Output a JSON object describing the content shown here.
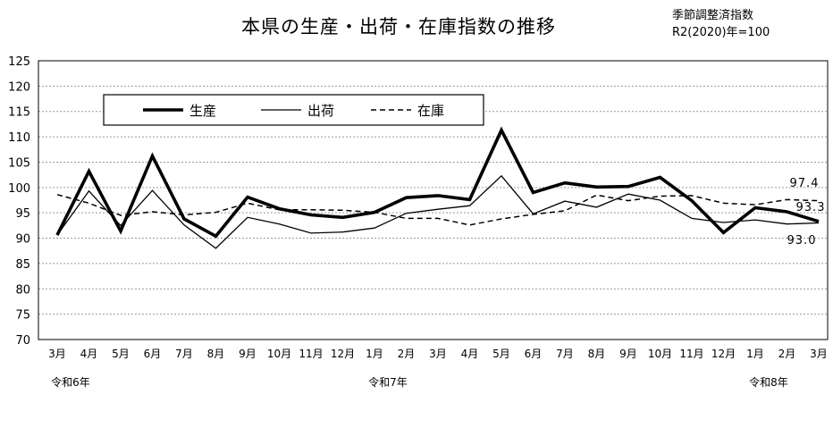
{
  "chart_data": {
    "type": "line",
    "title": "本県の生産・出荷・在庫指数の推移",
    "notes": [
      "季節調整済指数",
      "R2(2020)年=100"
    ],
    "categories": [
      "3月",
      "4月",
      "5月",
      "6月",
      "7月",
      "8月",
      "9月",
      "10月",
      "11月",
      "12月",
      "1月",
      "2月",
      "3月",
      "4月",
      "5月",
      "6月",
      "7月",
      "8月",
      "9月",
      "10月",
      "11月",
      "12月",
      "1月",
      "2月",
      "3月"
    ],
    "year_labels": [
      {
        "label": "令和6年",
        "category_index": 0
      },
      {
        "label": "令和7年",
        "category_index": 10
      },
      {
        "label": "令和8年",
        "category_index": 22
      }
    ],
    "ylim": [
      70,
      125
    ],
    "yticks": [
      70,
      75,
      80,
      85,
      90,
      95,
      100,
      105,
      110,
      115,
      120,
      125
    ],
    "grid": true,
    "legend_position": "top-left",
    "series": [
      {
        "name": "生産",
        "style": "thick",
        "color": "#000000",
        "values": [
          90.6,
          103.2,
          91.4,
          106.2,
          93.8,
          90.4,
          98.1,
          95.8,
          94.6,
          94.1,
          95.1,
          98.0,
          98.4,
          97.6,
          111.3,
          99.0,
          100.9,
          100.1,
          100.2,
          102.0,
          97.4,
          91.1,
          96.0,
          95.2,
          93.3
        ]
      },
      {
        "name": "出荷",
        "style": "thin",
        "color": "#000000",
        "values": [
          90.6,
          99.3,
          92.5,
          99.4,
          92.6,
          88.0,
          94.1,
          92.8,
          91.0,
          91.2,
          92.0,
          94.9,
          95.7,
          96.4,
          102.3,
          94.8,
          97.3,
          96.1,
          98.7,
          97.5,
          93.9,
          93.1,
          93.6,
          92.8,
          93.0
        ]
      },
      {
        "name": "在庫",
        "style": "dashed",
        "color": "#000000",
        "values": [
          98.6,
          96.9,
          94.5,
          95.2,
          94.6,
          95.1,
          96.9,
          95.6,
          95.6,
          95.5,
          95.1,
          93.9,
          93.9,
          92.6,
          93.8,
          94.7,
          95.4,
          98.5,
          97.4,
          98.3,
          98.4,
          96.9,
          96.6,
          97.6,
          97.4
        ]
      }
    ],
    "annotations": [
      {
        "text": "97.4",
        "series": "在庫"
      },
      {
        "text": "93.3",
        "series": "生産"
      },
      {
        "text": "93.0",
        "series": "出荷"
      }
    ]
  }
}
